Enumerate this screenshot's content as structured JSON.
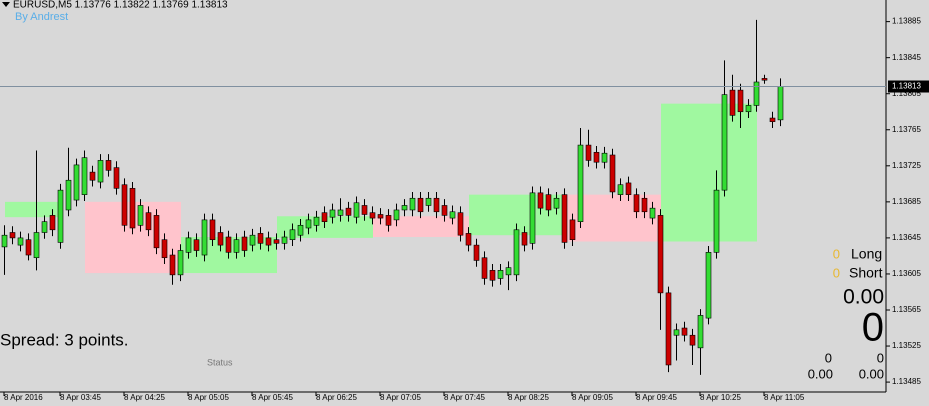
{
  "chart_data": {
    "type": "candlestick",
    "title": "EURUSD,M5  1.13776 1.13822 1.13769 1.13813",
    "subtitle": "By Andrest",
    "up_color": "#33dd33",
    "down_color": "#cc0000",
    "open": [
      1.13635,
      1.13651,
      1.13637,
      1.13643,
      1.13623,
      1.13651,
      1.1367,
      1.1364,
      1.13676,
      1.13687,
      1.13693,
      1.13718,
      1.13707,
      1.13731,
      1.13723,
      1.13704,
      1.137,
      1.13659,
      1.13673,
      1.1367,
      1.13643,
      1.13626,
      1.13604,
      1.13629,
      1.13643,
      1.13626,
      1.13665,
      1.13651,
      1.13646,
      1.13629,
      1.13646,
      1.13637,
      1.1365,
      1.13645,
      1.13643,
      1.13639,
      1.13643,
      1.13648,
      1.13656,
      1.13659,
      1.13673,
      1.13668,
      1.1367,
      1.13678,
      1.13668,
      1.13681,
      1.13673,
      1.13671,
      1.1367,
      1.13665,
      1.13676,
      1.13676,
      1.13689,
      1.13681,
      1.13689,
      1.13681,
      1.13667,
      1.13673,
      1.1365,
      1.13637,
      1.13623,
      1.13609,
      1.136,
      1.13604,
      1.13604,
      1.13651,
      1.13639,
      1.13695,
      1.13693,
      1.13678,
      1.13693,
      1.13665,
      1.13663,
      1.13748,
      1.1374,
      1.13729,
      1.13737,
      1.13693,
      1.13706,
      1.13693,
      1.13689,
      1.13667,
      1.1367,
      1.13584,
      1.13537,
      1.13545,
      1.13537,
      1.13523,
      1.13556,
      1.13629,
      1.13698,
      1.13809,
      1.13809,
      1.13785,
      1.13792,
      1.13822,
      1.13778,
      1.13776
    ],
    "high": [
      1.13659,
      1.13658,
      1.13652,
      1.1365,
      1.13742,
      1.1367,
      1.13677,
      1.13705,
      1.13745,
      1.13733,
      1.13742,
      1.13725,
      1.13738,
      1.13738,
      1.1373,
      1.13711,
      1.13707,
      1.13688,
      1.1368,
      1.13677,
      1.1365,
      1.13633,
      1.13638,
      1.13652,
      1.1365,
      1.13672,
      1.13672,
      1.13658,
      1.13653,
      1.1365,
      1.13653,
      1.13655,
      1.13657,
      1.13652,
      1.1365,
      1.13653,
      1.13661,
      1.13666,
      1.13672,
      1.13675,
      1.1368,
      1.13683,
      1.13689,
      1.13685,
      1.13691,
      1.13688,
      1.1368,
      1.13678,
      1.13677,
      1.13683,
      1.13688,
      1.13696,
      1.13696,
      1.13696,
      1.13696,
      1.13688,
      1.13681,
      1.1368,
      1.13657,
      1.13644,
      1.1363,
      1.13616,
      1.13616,
      1.13619,
      1.13661,
      1.13658,
      1.13702,
      1.13702,
      1.137,
      1.13696,
      1.137,
      1.13672,
      1.13767,
      1.13765,
      1.13747,
      1.13746,
      1.13744,
      1.13711,
      1.13713,
      1.137,
      1.13696,
      1.13685,
      1.13677,
      1.13591,
      1.1355,
      1.13552,
      1.13544,
      1.13566,
      1.13636,
      1.1372,
      1.13842,
      1.13826,
      1.13816,
      1.13799,
      1.13887,
      1.13826,
      1.13785,
      1.13822
    ],
    "low": [
      1.13604,
      1.13638,
      1.1363,
      1.1362,
      1.13609,
      1.13644,
      1.13647,
      1.13633,
      1.13669,
      1.1368,
      1.13686,
      1.13702,
      1.137,
      1.13713,
      1.13693,
      1.13652,
      1.13649,
      1.13652,
      1.13647,
      1.13627,
      1.13616,
      1.13593,
      1.13597,
      1.13622,
      1.13624,
      1.13619,
      1.13636,
      1.1363,
      1.13622,
      1.13622,
      1.13624,
      1.1363,
      1.13632,
      1.1363,
      1.13632,
      1.13632,
      1.13636,
      1.13641,
      1.13649,
      1.13652,
      1.13656,
      1.13661,
      1.13663,
      1.13663,
      1.13661,
      1.13664,
      1.1366,
      1.1366,
      1.13652,
      1.13658,
      1.13669,
      1.13669,
      1.13667,
      1.13674,
      1.13667,
      1.13663,
      1.1366,
      1.13641,
      1.1363,
      1.13613,
      1.13593,
      1.13591,
      1.13593,
      1.13587,
      1.13597,
      1.1363,
      1.13632,
      1.13671,
      1.13669,
      1.13671,
      1.13633,
      1.13636,
      1.13656,
      1.13724,
      1.13722,
      1.13722,
      1.13689,
      1.13686,
      1.13686,
      1.13667,
      1.13667,
      1.1366,
      1.13543,
      1.13496,
      1.13509,
      1.1353,
      1.13504,
      1.13493,
      1.13549,
      1.13622,
      1.13691,
      1.13774,
      1.13767,
      1.13778,
      1.13785,
      1.13816,
      1.13767,
      1.13769
    ],
    "close": [
      1.13648,
      1.13645,
      1.13645,
      1.13626,
      1.13651,
      1.13663,
      1.13654,
      1.13698,
      1.13709,
      1.13726,
      1.13734,
      1.13709,
      1.13731,
      1.1372,
      1.137,
      1.13659,
      1.13656,
      1.13681,
      1.13654,
      1.13634,
      1.13623,
      1.13604,
      1.13631,
      1.13645,
      1.13631,
      1.13665,
      1.13643,
      1.13637,
      1.13629,
      1.13643,
      1.13631,
      1.13648,
      1.13639,
      1.13637,
      1.13639,
      1.13646,
      1.13654,
      1.13659,
      1.13665,
      1.13668,
      1.13663,
      1.13676,
      1.13676,
      1.1367,
      1.13684,
      1.13671,
      1.13667,
      1.13667,
      1.13659,
      1.13676,
      1.13681,
      1.13689,
      1.13674,
      1.13689,
      1.13674,
      1.1367,
      1.13674,
      1.13648,
      1.13637,
      1.1362,
      1.136,
      1.13598,
      1.13609,
      1.13612,
      1.13654,
      1.13637,
      1.13695,
      1.13678,
      1.13676,
      1.13689,
      1.1364,
      1.13643,
      1.13748,
      1.13731,
      1.13729,
      1.13739,
      1.13696,
      1.13704,
      1.13693,
      1.13674,
      1.13674,
      1.13678,
      1.13584,
      1.13504,
      1.13543,
      1.13537,
      1.13526,
      1.13559,
      1.13629,
      1.13698,
      1.13804,
      1.13781,
      1.13785,
      1.13792,
      1.13818,
      1.1382,
      1.13774,
      1.13813
    ],
    "boxes": [
      {
        "start": 0,
        "end": 7,
        "high": 1.13685,
        "low": 1.13668,
        "color": "#a0f8a0"
      },
      {
        "start": 10,
        "end": 22,
        "high": 1.13685,
        "low": 1.13606,
        "color": "#ffc4cc"
      },
      {
        "start": 22,
        "end": 34,
        "high": 1.13646,
        "low": 1.13606,
        "color": "#a0f8a0"
      },
      {
        "start": 34,
        "end": 46,
        "high": 1.13669,
        "low": 1.13645,
        "color": "#a0f8a0"
      },
      {
        "start": 46,
        "end": 58,
        "high": 1.13669,
        "low": 1.13646,
        "color": "#ffc4cc"
      },
      {
        "start": 58,
        "end": 70,
        "high": 1.13693,
        "low": 1.13648,
        "color": "#a0f8a0"
      },
      {
        "start": 70,
        "end": 82,
        "high": 1.13693,
        "low": 1.13641,
        "color": "#ffc4cc"
      },
      {
        "start": 82,
        "end": 94,
        "high": 1.13794,
        "low": 1.13641,
        "color": "#a0f8a0"
      }
    ],
    "current_price": 1.13813,
    "xlim": [
      -0.5,
      110.25
    ],
    "ylim": [
      1.13474,
      1.13909
    ],
    "xticks": [
      {
        "value": 0,
        "label": "8 Apr 2016"
      },
      {
        "value": 7,
        "label": "8 Apr 03:45"
      },
      {
        "value": 15,
        "label": "8 Apr 04:25"
      },
      {
        "value": 23,
        "label": "8 Apr 05:05"
      },
      {
        "value": 31,
        "label": "8 Apr 05:45"
      },
      {
        "value": 39,
        "label": "8 Apr 06:25"
      },
      {
        "value": 47,
        "label": "8 Apr 07:05"
      },
      {
        "value": 55,
        "label": "8 Apr 07:45"
      },
      {
        "value": 63,
        "label": "8 Apr 08:25"
      },
      {
        "value": 71,
        "label": "8 Apr 09:05"
      },
      {
        "value": 79,
        "label": "8 Apr 09:45"
      },
      {
        "value": 87,
        "label": "8 Apr 10:25"
      },
      {
        "value": 95,
        "label": "8 Apr 11:05"
      }
    ],
    "yticks": [
      1.13885,
      1.13845,
      1.13805,
      1.13765,
      1.13725,
      1.13685,
      1.13645,
      1.13605,
      1.13565,
      1.13525,
      1.13485
    ]
  },
  "panel": {
    "spread": "Spread: 3 points.",
    "status": "Status",
    "long_count": "0",
    "long_label": "Long",
    "short_count": "0",
    "short_label": "Short",
    "profit": "0.00",
    "total": "0",
    "left_count": "0",
    "right_count": "0",
    "left_value": "0.00",
    "right_value": "0.00"
  }
}
